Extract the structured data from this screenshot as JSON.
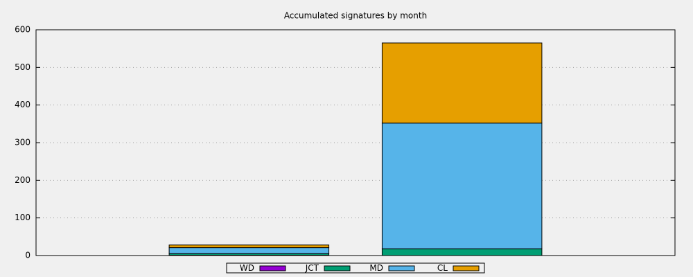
{
  "chart_data": {
    "type": "stacked-bar",
    "title": "Accumulated signatures by month",
    "categories": [
      null,
      null
    ],
    "series": [
      {
        "name": "WD",
        "color": "#9400d3",
        "values": [
          1,
          0
        ]
      },
      {
        "name": "JCT",
        "color": "#009e73",
        "values": [
          4,
          18
        ]
      },
      {
        "name": "MD",
        "color": "#56b4e9",
        "values": [
          16,
          334
        ]
      },
      {
        "name": "CL",
        "color": "#e69f00",
        "values": [
          7,
          213
        ]
      }
    ],
    "ylim": [
      0,
      600
    ],
    "yticks": [
      0,
      100,
      200,
      300,
      400,
      500,
      600
    ],
    "grid": true,
    "legend": "bottom"
  }
}
